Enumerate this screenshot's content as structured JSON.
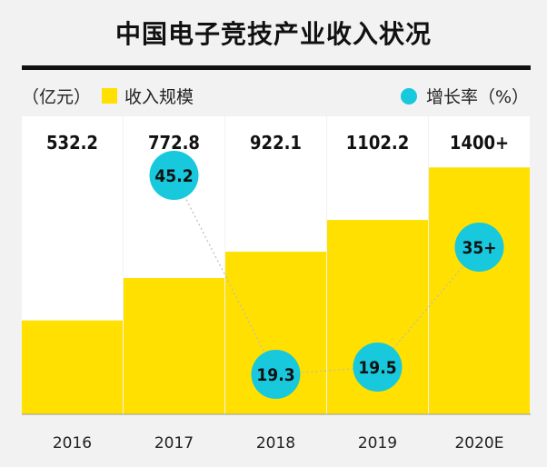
{
  "title": "中国电子竞技产业收入状况",
  "legend": {
    "unit_left": "（亿元）",
    "bar_series": "收入规模",
    "rate_series": "增长率（%）"
  },
  "colors": {
    "bar": "#ffe000",
    "column_bg": "#ffffff",
    "bubble": "#18c8dc",
    "text": "#111111"
  },
  "chart_data": {
    "type": "bar",
    "categories": [
      "2016",
      "2017",
      "2018",
      "2019",
      "2020E"
    ],
    "series": [
      {
        "name": "收入规模",
        "values": [
          532.2,
          772.8,
          922.1,
          1102.2,
          1400
        ],
        "value_labels": [
          "532.2",
          "772.8",
          "922.1",
          "1102.2",
          "1400+"
        ]
      },
      {
        "name": "增长率（%）",
        "values": [
          null,
          45.2,
          19.3,
          19.5,
          35
        ],
        "value_labels": [
          "",
          "45.2",
          "19.3",
          "19.5",
          "35+"
        ]
      }
    ],
    "ylim": [
      0,
      1690
    ],
    "grid": false,
    "legend": "top"
  }
}
